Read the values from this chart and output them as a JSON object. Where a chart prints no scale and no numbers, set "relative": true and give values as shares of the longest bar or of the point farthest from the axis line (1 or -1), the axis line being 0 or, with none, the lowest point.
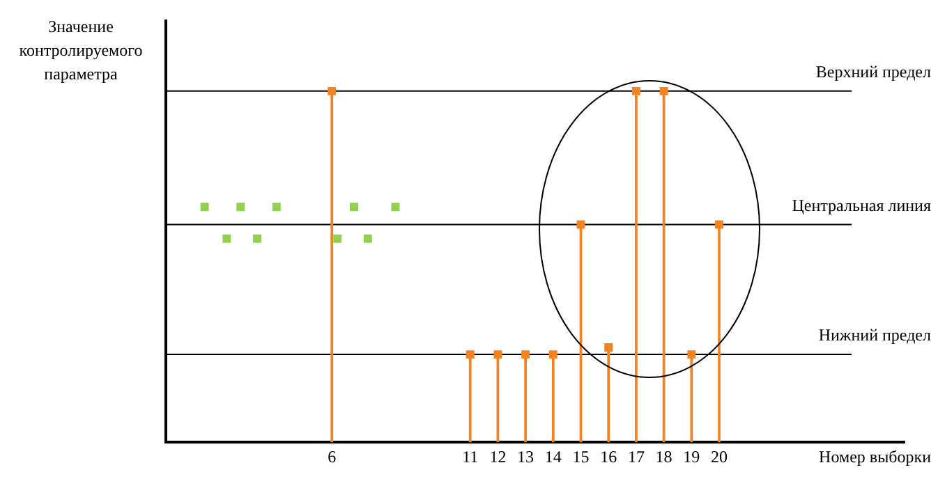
{
  "chart_data": {
    "type": "lollipop",
    "relative": true,
    "xlabel": "Номер выборки",
    "ylabel": "Значение контролируемого параметра",
    "xlim": [
      0,
      26.7
    ],
    "xticks": [
      6,
      11,
      12,
      13,
      14,
      15,
      16,
      17,
      18,
      19,
      20
    ],
    "series": [
      {
        "type": "scatter",
        "color": "#92d050",
        "x": [
          1.4,
          2.2,
          2.7,
          3.3,
          4.0,
          6.2,
          6.8,
          7.3,
          8.3
        ],
        "values": [
          0.67,
          0.58,
          0.67,
          0.58,
          0.67,
          0.58,
          0.67,
          0.58,
          0.67
        ]
      },
      {
        "color": "#f58220",
        "x": [
          6,
          11,
          12,
          13,
          14,
          15,
          16,
          17,
          18,
          19,
          20
        ],
        "values": [
          1,
          0.25,
          0.25,
          0.25,
          0.25,
          0.62,
          0.27,
          1,
          1,
          0.25,
          0.62
        ]
      }
    ],
    "ref_lines": [
      {
        "axis": "y",
        "value": 1,
        "label": "Верхний предел",
        "color": "#000000"
      },
      {
        "axis": "y",
        "value": 0.62,
        "label": "Центральная линия",
        "color": "#000000"
      },
      {
        "axis": "y",
        "value": 0.25,
        "label": "Нижний предел",
        "color": "#000000"
      }
    ],
    "marker": "square",
    "grid": false,
    "legend": false
  }
}
